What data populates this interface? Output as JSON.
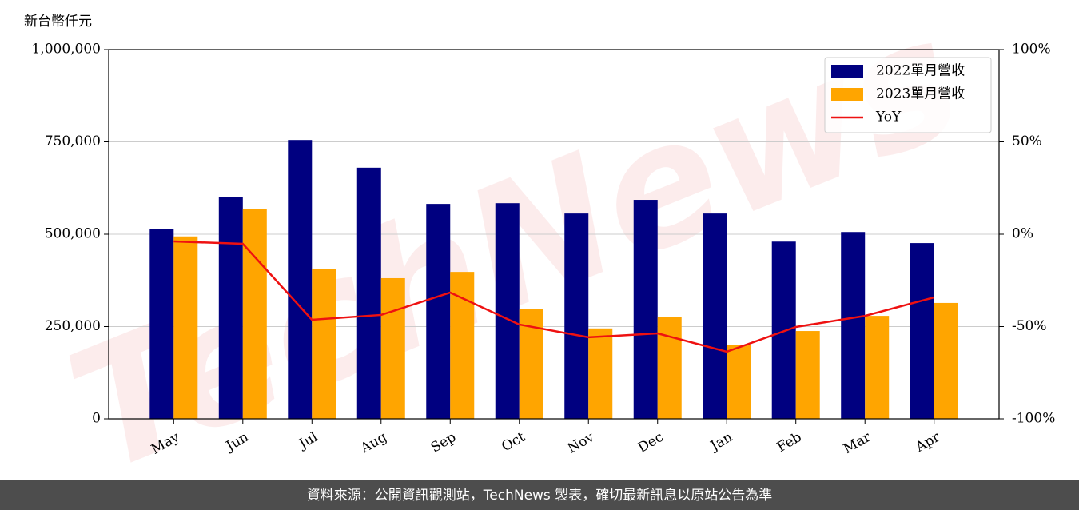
{
  "chart_data": {
    "type": "bar",
    "y_label": "新台幣仟元",
    "watermark": "TechNews",
    "categories": [
      "May",
      "Jun",
      "Jul",
      "Aug",
      "Sep",
      "Oct",
      "Nov",
      "Dec",
      "Jan",
      "Feb",
      "Mar",
      "Apr"
    ],
    "series": [
      {
        "name": "2022單月營收",
        "color": "#000080",
        "values": [
          513000,
          600000,
          755000,
          680000,
          582000,
          584000,
          556000,
          593000,
          556000,
          480000,
          506000,
          476000
        ]
      },
      {
        "name": "2023單月營收",
        "color": "#ffa500",
        "values": [
          494000,
          569000,
          405000,
          381000,
          398000,
          297000,
          245000,
          275000,
          201000,
          238000,
          279000,
          314000
        ]
      },
      {
        "name": "YoY",
        "type": "line",
        "axis": "y2",
        "color": "#ee1111",
        "values": [
          -3.9,
          -5.2,
          -46.3,
          -43.7,
          -31.6,
          -48.9,
          -55.8,
          -53.7,
          -63.6,
          -50.2,
          -44.2,
          -34.2
        ]
      }
    ],
    "ylim": [
      0,
      1000000
    ],
    "yticks": [
      0,
      {
        "value": 250000,
        "label": "250,000"
      },
      {
        "value": 500000,
        "label": "500,000"
      },
      {
        "value": 750000,
        "label": "750,000"
      },
      {
        "value": 1000000,
        "label": "1,000,000"
      }
    ],
    "y2lim": [
      -100,
      100
    ],
    "y2ticks": [
      {
        "value": -100,
        "label": "-100%"
      },
      {
        "value": -50,
        "label": "-50%"
      },
      {
        "value": 0,
        "label": "0%"
      },
      {
        "value": 50,
        "label": "50%"
      },
      {
        "value": 100,
        "label": "100%"
      }
    ],
    "grid": true,
    "legend": "upper right",
    "source": "資料來源：公開資訊觀測站，TechNews 製表，確切最新訊息以原站公告為準"
  }
}
